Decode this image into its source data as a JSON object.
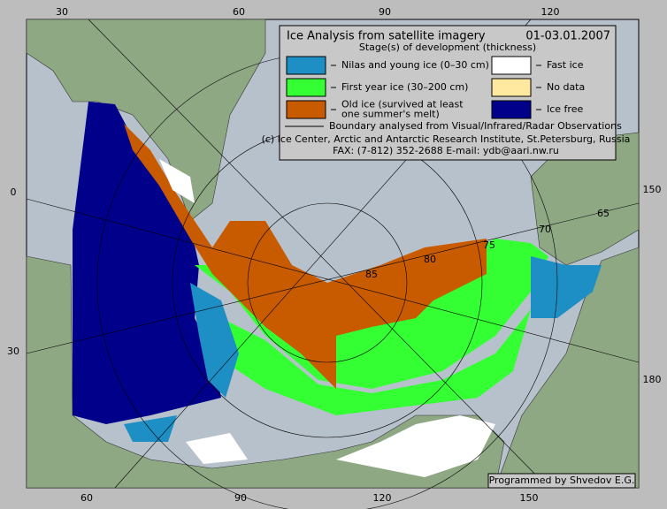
{
  "legend": {
    "title": "Ice Analysis from satellite imagery",
    "date": "01-03.01.2007",
    "subtitle": "Stage(s) of development (thickness)",
    "items": [
      {
        "lines": [
          "Nilas and young ice (0–30 cm)"
        ],
        "color": "#1e8fc4"
      },
      {
        "lines": [
          "Fast ice"
        ],
        "color": "#ffffff"
      },
      {
        "lines": [
          "First year ice (30–200 cm)"
        ],
        "color": "#33ff33"
      },
      {
        "lines": [
          "No data"
        ],
        "color": "#ffe8a0"
      },
      {
        "lines": [
          "Old ice (survived at least",
          "one summer's melt)"
        ],
        "color": "#c85a00"
      },
      {
        "lines": [
          "Ice free"
        ],
        "color": "#00008b"
      }
    ],
    "boundary": "Boundary analysed from Visual/Infrared/Radar Observations",
    "credit": "(c) Ice Center, Arctic and Antarctic Research Institute, St.Petersburg, Russia",
    "contact": "FAX: (7-812) 352-2688 E-mail: ydb@aari.nw.ru"
  },
  "graticule": {
    "top": [
      "30",
      "60",
      "90",
      "120"
    ],
    "left": [
      "0",
      "30"
    ],
    "right": [
      "150",
      "180"
    ],
    "bottom": [
      "60",
      "90",
      "120",
      "150"
    ],
    "latitudes": [
      "85",
      "80",
      "75",
      "70",
      "65"
    ]
  },
  "footer": "Programmed by Shvedov E.G."
}
